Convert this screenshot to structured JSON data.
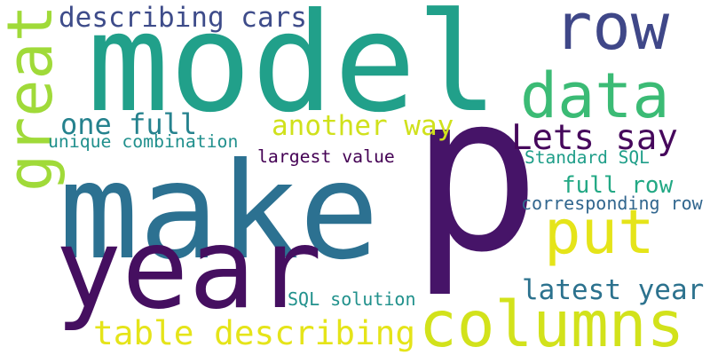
{
  "words": [
    {
      "text": "model",
      "color": "#21a08a"
    },
    {
      "text": "p",
      "color": "#461468"
    },
    {
      "text": "make",
      "color": "#2c7191"
    },
    {
      "text": "year",
      "color": "#450f60"
    },
    {
      "text": "row",
      "color": "#3f4788"
    },
    {
      "text": "data",
      "color": "#3bbb75"
    },
    {
      "text": "great",
      "color": "#a0da39"
    },
    {
      "text": "describing cars",
      "color": "#3e4c8a"
    },
    {
      "text": "one full",
      "color": "#26828e"
    },
    {
      "text": "another way",
      "color": "#d0e11c"
    },
    {
      "text": "Lets say",
      "color": "#46085c"
    },
    {
      "text": "unique combination",
      "color": "#21908d"
    },
    {
      "text": "largest value",
      "color": "#440154"
    },
    {
      "text": "Standard SQL",
      "color": "#1f9e89"
    },
    {
      "text": "full row",
      "color": "#22a884"
    },
    {
      "text": "corresponding row",
      "color": "#31668e"
    },
    {
      "text": "put",
      "color": "#e5e419"
    },
    {
      "text": "latest year",
      "color": "#2c728e"
    },
    {
      "text": "SQL solution",
      "color": "#21918c"
    },
    {
      "text": "columns",
      "color": "#d2e21b"
    },
    {
      "text": "table describing",
      "color": "#e5e419"
    }
  ]
}
